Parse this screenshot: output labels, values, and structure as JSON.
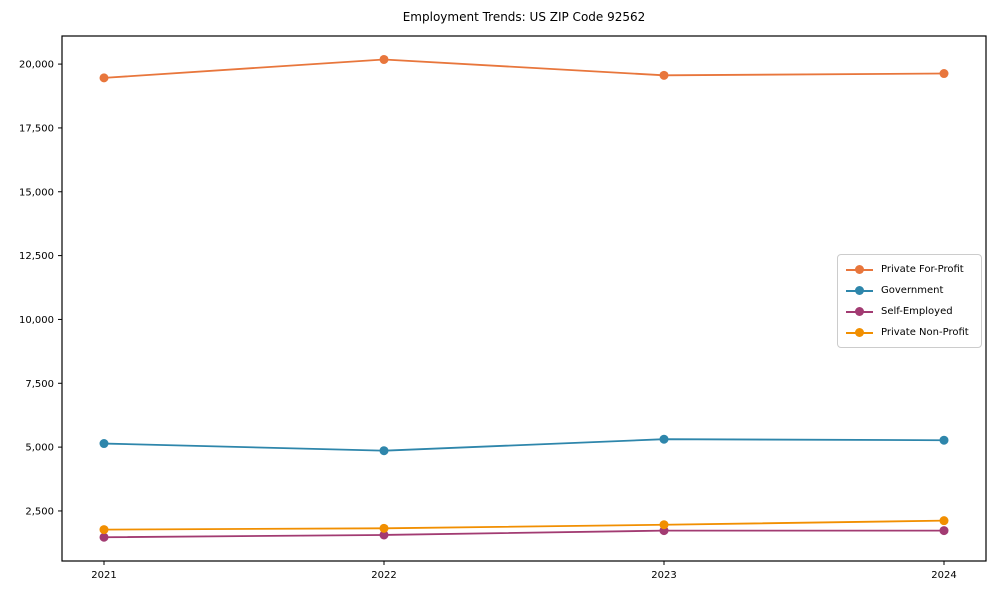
{
  "chart_data": {
    "type": "line",
    "title": "Employment Trends: US ZIP Code 92562",
    "xlabel": "",
    "ylabel": "",
    "x": [
      2021,
      2022,
      2023,
      2024
    ],
    "x_tick_labels": [
      "2021",
      "2022",
      "2023",
      "2024"
    ],
    "series": [
      {
        "name": "Private For-Profit",
        "color": "#e8763c",
        "values": [
          19460,
          20180,
          19560,
          19630
        ]
      },
      {
        "name": "Government",
        "color": "#2e86ab",
        "values": [
          5140,
          4860,
          5310,
          5270
        ]
      },
      {
        "name": "Self-Employed",
        "color": "#a23b72",
        "values": [
          1470,
          1560,
          1730,
          1730
        ]
      },
      {
        "name": "Private Non-Profit",
        "color": "#f18f01",
        "values": [
          1770,
          1820,
          1960,
          2120
        ]
      }
    ],
    "yticks": [
      2500,
      5000,
      7500,
      10000,
      12500,
      15000,
      17500,
      20000
    ],
    "ytick_labels": [
      "2,500",
      "5,000",
      "7,500",
      "10,000",
      "12,500",
      "15,000",
      "17,500",
      "20,000"
    ],
    "xlim": [
      2020.85,
      2024.15
    ],
    "ylim": [
      540,
      21100
    ],
    "grid": false,
    "legend_position": "center right",
    "marker": "o",
    "axis_color": "#000000",
    "background": "#ffffff"
  }
}
